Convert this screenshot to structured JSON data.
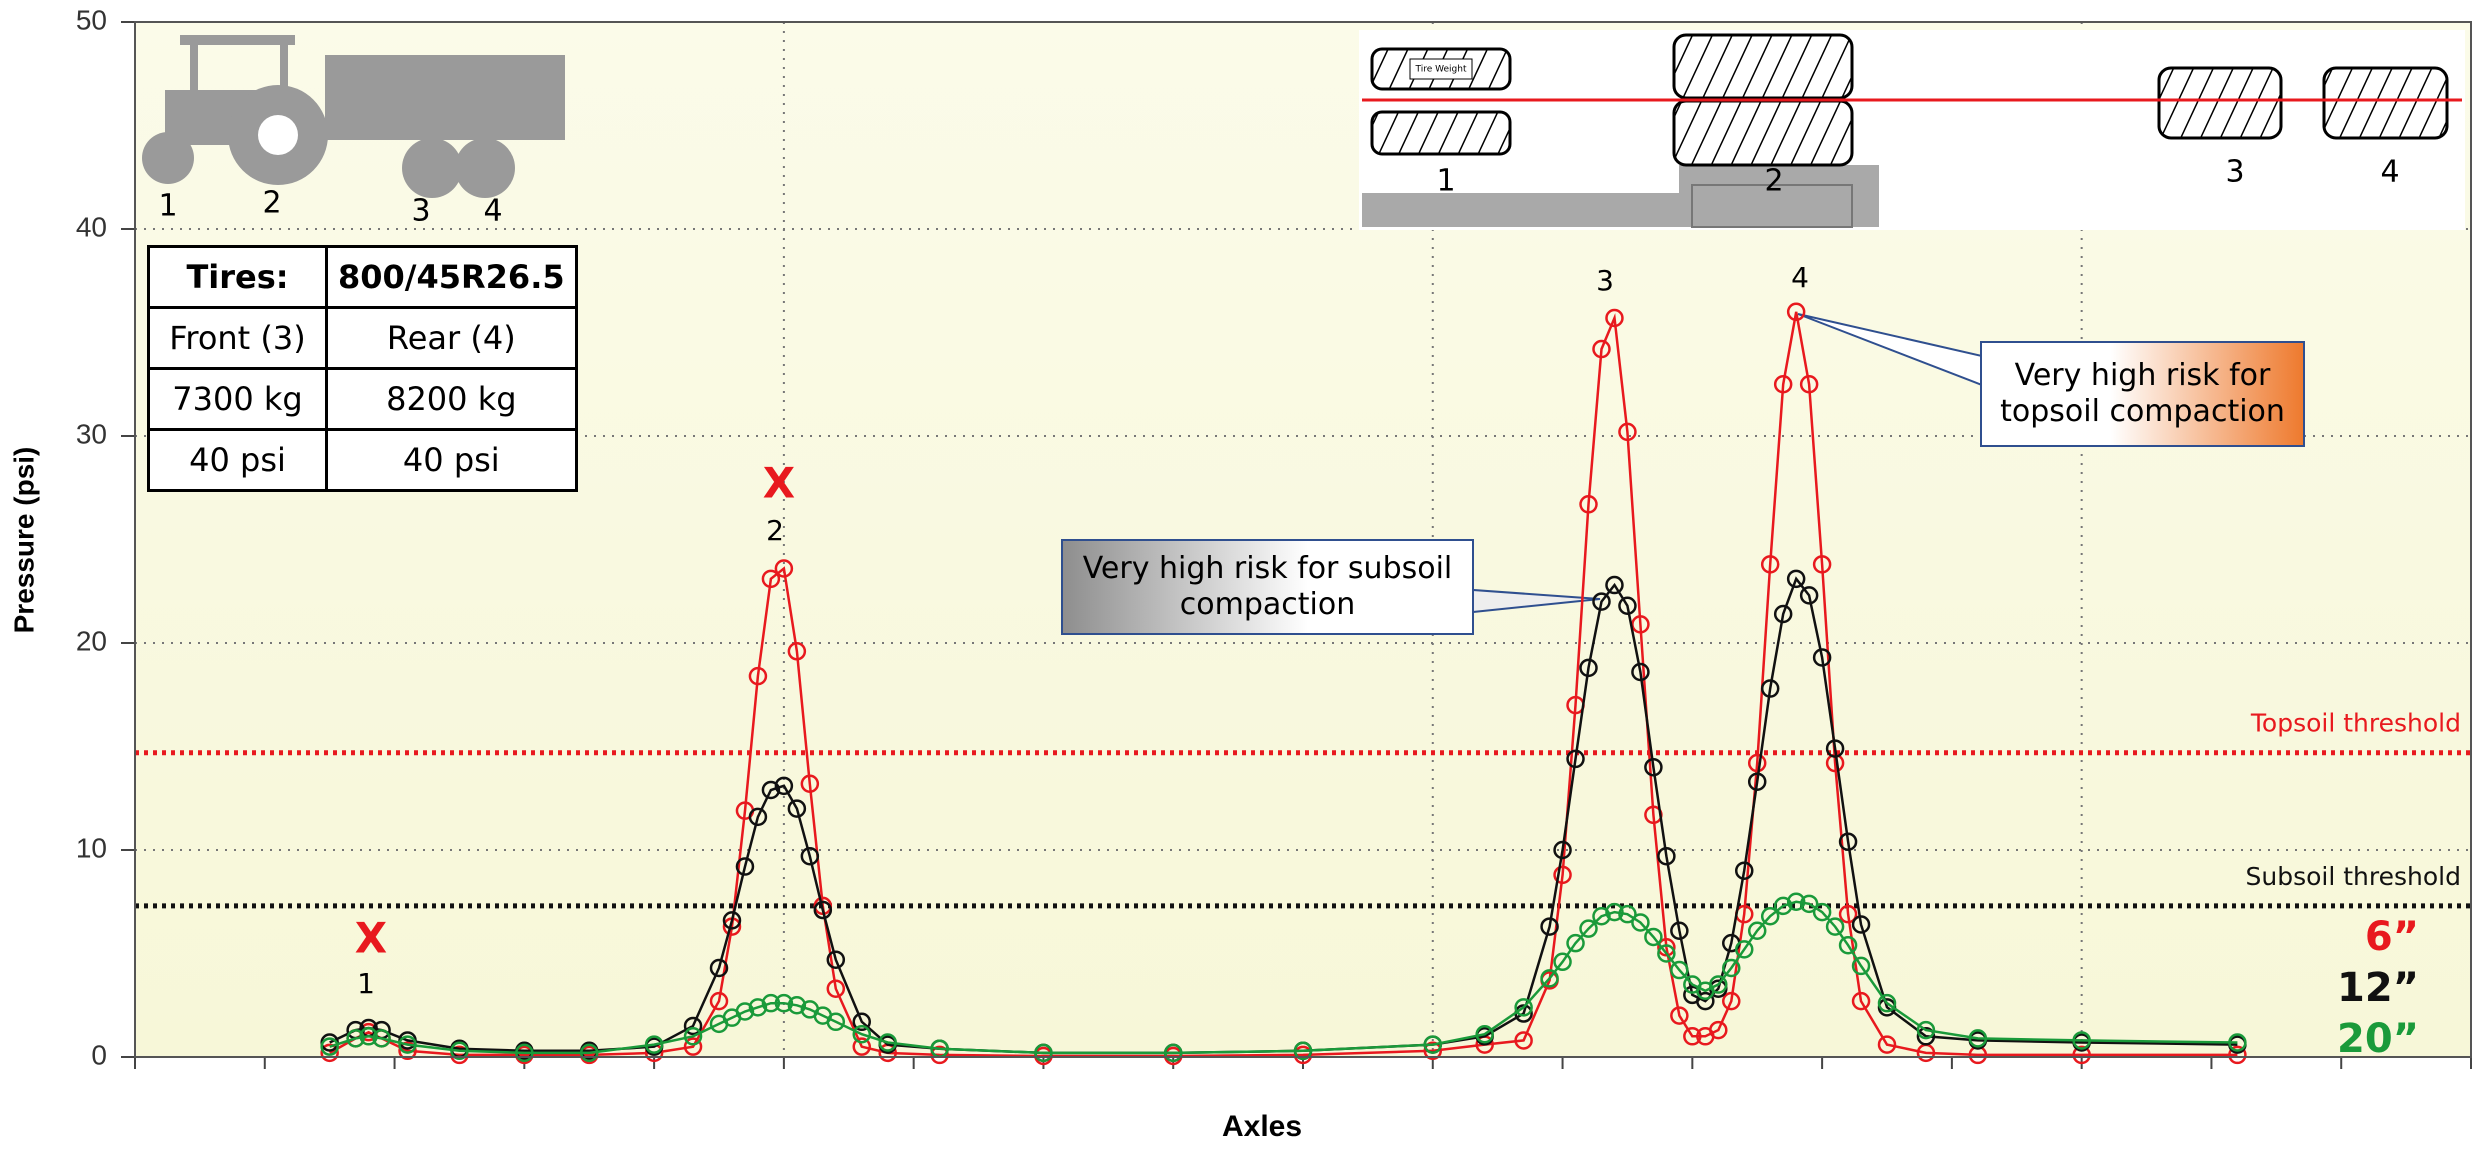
{
  "chart_data": {
    "type": "line",
    "y_label": "Pressure (psi)",
    "x_label": "Axles",
    "x": [
      1.5,
      1.7,
      1.8,
      1.9,
      2.1,
      2.5,
      3,
      3.5,
      4,
      4.3,
      4.5,
      4.6,
      4.7,
      4.8,
      4.9,
      5.0,
      5.1,
      5.2,
      5.3,
      5.4,
      5.6,
      5.8,
      6.2,
      7,
      8,
      9,
      10,
      10.4,
      10.7,
      10.9,
      11.0,
      11.1,
      11.2,
      11.3,
      11.4,
      11.5,
      11.6,
      11.7,
      11.8,
      11.9,
      12.0,
      12.1,
      12.2,
      12.3,
      12.4,
      12.5,
      12.6,
      12.7,
      12.8,
      12.9,
      13.0,
      13.1,
      13.2,
      13.3,
      13.5,
      13.8,
      14.2,
      15,
      16.2
    ],
    "xlim": [
      0,
      18
    ],
    "xticks": [
      0,
      1,
      2,
      3,
      4,
      5,
      6,
      7,
      8,
      9,
      10,
      11,
      12,
      13,
      14,
      15,
      16,
      17,
      18
    ],
    "ylim": [
      0,
      50
    ],
    "yticks": [
      0,
      10,
      20,
      30,
      40,
      50
    ],
    "grid": true,
    "series": [
      {
        "name": "6”",
        "color": "#e8191e",
        "values": [
          0.2,
          0.9,
          1.2,
          0.9,
          0.3,
          0.1,
          0.1,
          0.1,
          0.2,
          0.5,
          2.7,
          6.3,
          11.9,
          18.4,
          23.1,
          23.6,
          19.6,
          13.2,
          7.3,
          3.3,
          0.5,
          0.2,
          0.1,
          0.05,
          0.05,
          0.1,
          0.3,
          0.6,
          0.8,
          3.7,
          8.8,
          17.0,
          26.7,
          34.2,
          35.7,
          30.2,
          20.9,
          11.7,
          5.3,
          2.0,
          1.0,
          1.0,
          1.3,
          2.7,
          6.9,
          14.2,
          23.8,
          32.5,
          36.0,
          32.5,
          23.8,
          14.2,
          6.9,
          2.7,
          0.6,
          0.2,
          0.1,
          0.1,
          0.1
        ]
      },
      {
        "name": "12”",
        "color": "#111111",
        "values": [
          0.7,
          1.3,
          1.4,
          1.3,
          0.8,
          0.4,
          0.3,
          0.3,
          0.5,
          1.5,
          4.3,
          6.6,
          9.2,
          11.6,
          12.9,
          13.1,
          12.0,
          9.7,
          7.1,
          4.7,
          1.7,
          0.6,
          0.4,
          0.2,
          0.2,
          0.3,
          0.6,
          1.0,
          2.1,
          6.3,
          10.0,
          14.4,
          18.8,
          22.0,
          22.8,
          21.8,
          18.6,
          14.0,
          9.7,
          6.1,
          3.0,
          2.7,
          3.3,
          5.5,
          9.0,
          13.3,
          17.8,
          21.4,
          23.1,
          22.3,
          19.3,
          14.9,
          10.4,
          6.4,
          2.4,
          1.0,
          0.8,
          0.7,
          0.6
        ]
      },
      {
        "name": "20”",
        "color": "#1a9a3a",
        "values": [
          0.5,
          0.9,
          1.0,
          0.9,
          0.6,
          0.3,
          0.2,
          0.2,
          0.6,
          1.0,
          1.6,
          1.9,
          2.2,
          2.4,
          2.6,
          2.6,
          2.5,
          2.3,
          2.0,
          1.7,
          1.1,
          0.7,
          0.4,
          0.2,
          0.2,
          0.3,
          0.6,
          1.1,
          2.4,
          3.8,
          4.6,
          5.5,
          6.2,
          6.8,
          7.0,
          6.9,
          6.5,
          5.8,
          5.0,
          4.2,
          3.5,
          3.2,
          3.5,
          4.3,
          5.2,
          6.1,
          6.8,
          7.3,
          7.5,
          7.4,
          7.0,
          6.3,
          5.4,
          4.4,
          2.6,
          1.3,
          0.9,
          0.8,
          0.7
        ]
      }
    ],
    "thresholds": [
      {
        "label": "Topsoil threshold",
        "value": 14.7,
        "color": "#e8191e"
      },
      {
        "label": "Subsoil threshold",
        "value": 7.3,
        "color": "#111111"
      }
    ],
    "axle_labels": [
      "1",
      "2",
      "3",
      "4"
    ],
    "x_marks": [
      "X",
      "X"
    ],
    "callouts": [
      "Very high risk for subsoil compaction",
      "Very high risk for topsoil compaction"
    ]
  },
  "machine_labels": [
    "1",
    "2",
    "3",
    "4"
  ],
  "axle_diagram": {
    "tire_weight": "Tire Weight",
    "labels": [
      "1",
      "2",
      "3",
      "4"
    ]
  },
  "tire_table": {
    "rows": [
      [
        "Tires:",
        "800/45R26.5"
      ],
      [
        "Front (3)",
        "Rear (4)"
      ],
      [
        "7300 kg",
        "8200 kg"
      ],
      [
        "40 psi",
        "40 psi"
      ]
    ]
  }
}
